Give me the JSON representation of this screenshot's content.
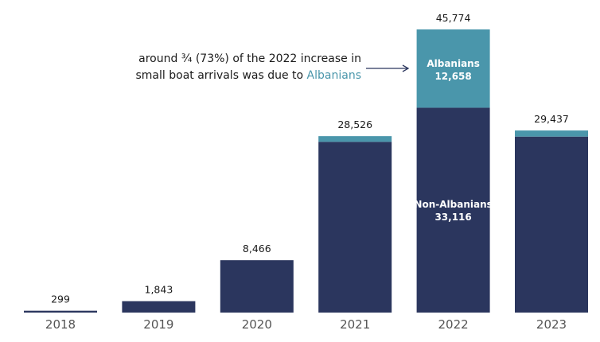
{
  "chart_data": {
    "type": "bar",
    "stacked": true,
    "categories": [
      "2018",
      "2019",
      "2020",
      "2021",
      "2022",
      "2023"
    ],
    "totals": [
      299,
      1843,
      8466,
      28526,
      45774,
      29437
    ],
    "total_labels": [
      "299",
      "1,843",
      "8,466",
      "28,526",
      "45,774",
      "29,437"
    ],
    "series": [
      {
        "name": "Non-Albanians",
        "values": [
          299,
          1843,
          8466,
          27600,
          33116,
          28450
        ],
        "color": "#2b365e"
      },
      {
        "name": "Albanians",
        "values": [
          0,
          0,
          0,
          926,
          12658,
          987
        ],
        "color": "#4a96ab"
      }
    ],
    "segment_labels": {
      "2022": {
        "Albanians": "Albanians\n12,658",
        "Non-Albanians": "Non-Albanians\n33,116"
      }
    },
    "seg_label_parts": {
      "alb_name": "Albanians",
      "alb_value": "12,658",
      "non_name": "Non-Albanians",
      "non_value": "33,116"
    },
    "ylim": [
      0,
      45774
    ],
    "grid": false,
    "legend": "none",
    "annotation": {
      "line1": "around ¾ (73%) of the 2022 increase in",
      "line2_prefix": "small boat arrivals was due to ",
      "line2_highlight": "Albanians"
    }
  }
}
